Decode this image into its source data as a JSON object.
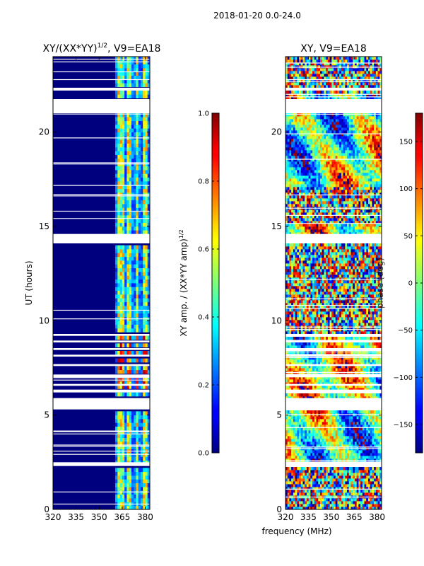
{
  "suptitle": "2018-01-20 0.0-24.0",
  "chart_data": [
    {
      "type": "heatmap",
      "title": "XY/(XX*YY)",
      "title_sup": "1/2",
      "title_rest": ", V9=EA18",
      "xlabel": "frequency (MHz)",
      "ylabel": "UT (hours)",
      "xlim": [
        320,
        383
      ],
      "ylim": [
        0,
        24
      ],
      "xticks": [
        320,
        335,
        350,
        365,
        380
      ],
      "yticks": [
        0,
        5,
        10,
        15,
        20
      ],
      "colorbar": {
        "label": "XY amp. / (XX*YY amp)",
        "label_sup": "1/2",
        "range": [
          0.0,
          1.0
        ],
        "ticks": [
          "0.0",
          "0.2",
          "0.4",
          "0.6",
          "0.8",
          "1.0"
        ],
        "tick_values": [
          0.0,
          0.2,
          0.4,
          0.6,
          0.8,
          1.0
        ]
      }
    },
    {
      "type": "heatmap",
      "title": "XY, V9=EA18",
      "xlabel": "frequency (MHz)",
      "ylabel": "",
      "xlim": [
        320,
        383
      ],
      "ylim": [
        0,
        24
      ],
      "xticks": [
        320,
        335,
        350,
        365,
        380
      ],
      "yticks": [
        0,
        5,
        10,
        15,
        20
      ],
      "colorbar": {
        "label": "phase (deg)",
        "range": [
          -180,
          180
        ],
        "ticks": [
          "−150",
          "−100",
          "−50",
          "0",
          "50",
          "100",
          "150"
        ],
        "tick_values": [
          -150,
          -100,
          -50,
          0,
          50,
          100,
          150
        ]
      }
    }
  ],
  "flagged_time_ranges_hours": [
    [
      21.0,
      21.75
    ],
    [
      22.2,
      22.35
    ],
    [
      14.1,
      14.6
    ],
    [
      5.3,
      5.9
    ],
    [
      2.3,
      2.5
    ],
    [
      6.2,
      6.35
    ],
    [
      6.55,
      6.65
    ],
    [
      7.0,
      7.15
    ],
    [
      7.6,
      7.7
    ],
    [
      8.1,
      8.2
    ],
    [
      8.45,
      8.55
    ],
    [
      8.85,
      8.95
    ],
    [
      9.2,
      9.3
    ]
  ],
  "amplitude_bright_channels_mhz": [
    [
      362,
      366
    ],
    [
      368,
      371
    ],
    [
      374,
      376
    ],
    [
      378,
      381
    ]
  ]
}
